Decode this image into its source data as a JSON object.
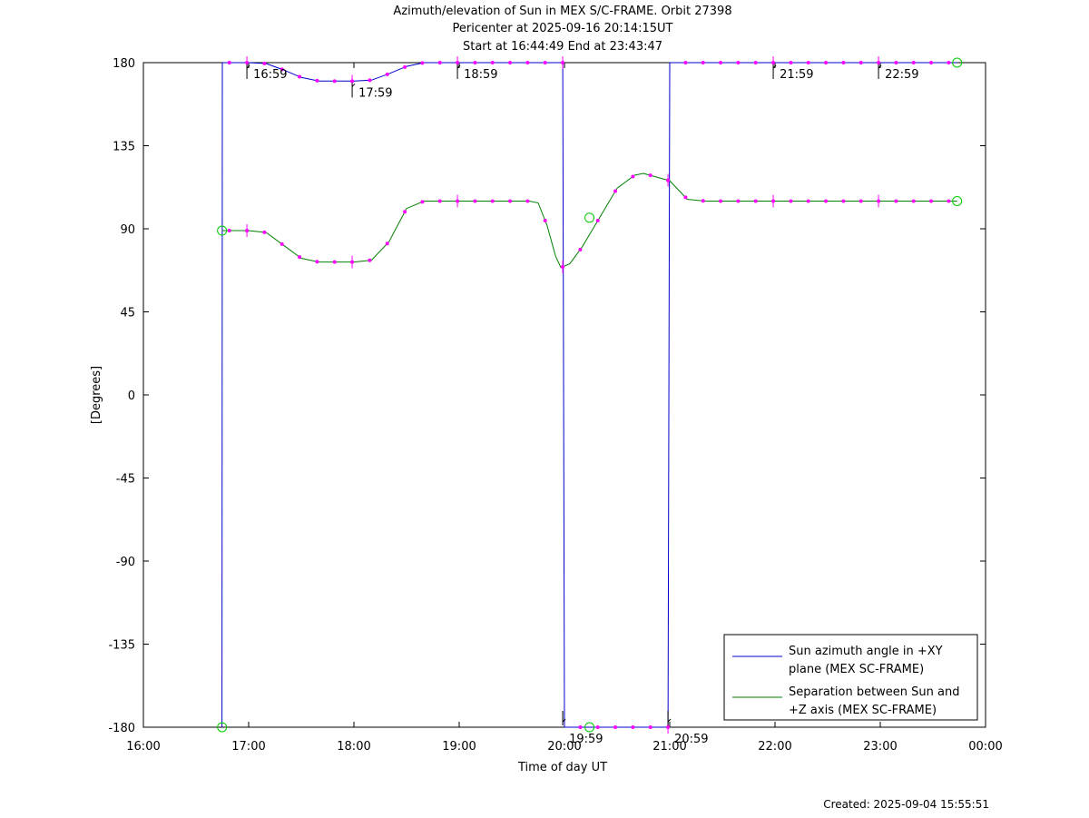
{
  "chart_data": {
    "type": "line",
    "title": "Azimuth/elevation of Sun in MEX S/C-FRAME.  Orbit 27398",
    "subtitle1": "Pericenter at 2025-09-16 20:14:15UT",
    "subtitle2": "Start at 16:44:49 End at 23:43:47",
    "xlabel": "Time of day UT",
    "ylabel": "[Degrees]",
    "created": "Created: 2025-09-04 15:55:51",
    "xlim": [
      "16:00",
      "00:00"
    ],
    "ylim": [
      -180,
      180
    ],
    "x_ticks": [
      "16:00",
      "17:00",
      "18:00",
      "19:00",
      "20:00",
      "21:00",
      "22:00",
      "23:00",
      "00:00"
    ],
    "y_ticks": [
      180,
      135,
      90,
      45,
      0,
      -45,
      -90,
      -135,
      -180
    ],
    "grid": false,
    "legend_position": "bottom-right",
    "series": [
      {
        "name": "Sun azimuth angle in +XY plane (MEX SC-FRAME)",
        "name_lines": [
          "Sun azimuth angle in +XY",
          "plane (MEX SC-FRAME)"
        ],
        "color": "#0000cc",
        "points": [
          [
            "16:44:49",
            -180
          ],
          [
            "16:45",
            180
          ],
          [
            "17:00",
            180
          ],
          [
            "17:10",
            179.5
          ],
          [
            "17:20",
            176
          ],
          [
            "17:30",
            172
          ],
          [
            "17:40",
            170
          ],
          [
            "18:00",
            170
          ],
          [
            "18:10",
            170.5
          ],
          [
            "18:20",
            174
          ],
          [
            "18:30",
            178
          ],
          [
            "18:40",
            180
          ],
          [
            "19:50",
            180
          ],
          [
            "19:59",
            180
          ],
          [
            "20:00",
            -180
          ],
          [
            "20:30",
            -180
          ],
          [
            "20:59",
            -180
          ],
          [
            "21:00",
            180
          ],
          [
            "23:43:47",
            180
          ]
        ]
      },
      {
        "name": "Separation between Sun and +Z axis (MEX SC-FRAME)",
        "name_lines": [
          "Separation between Sun and",
          "+Z axis (MEX SC-FRAME)"
        ],
        "color": "#008000",
        "points": [
          [
            "16:44:49",
            89
          ],
          [
            "17:00",
            89
          ],
          [
            "17:10",
            88
          ],
          [
            "17:20",
            81
          ],
          [
            "17:30",
            74
          ],
          [
            "17:40",
            72
          ],
          [
            "18:00",
            72
          ],
          [
            "18:10",
            73
          ],
          [
            "18:20",
            83
          ],
          [
            "18:30",
            101
          ],
          [
            "18:40",
            105
          ],
          [
            "19:40",
            105
          ],
          [
            "19:45",
            104
          ],
          [
            "19:50",
            92
          ],
          [
            "19:55",
            75
          ],
          [
            "19:58",
            69
          ],
          [
            "20:03",
            71
          ],
          [
            "20:10",
            80
          ],
          [
            "20:20",
            96
          ],
          [
            "20:30",
            112
          ],
          [
            "20:40",
            119
          ],
          [
            "20:45",
            120
          ],
          [
            "21:00",
            116
          ],
          [
            "21:10",
            106
          ],
          [
            "21:20",
            105
          ],
          [
            "23:43:47",
            105
          ]
        ]
      }
    ],
    "time_labels": [
      {
        "text": "16:59",
        "time": "16:59",
        "value": 180
      },
      {
        "text": "17:59",
        "time": "17:59",
        "value": 170
      },
      {
        "text": "18:59",
        "time": "18:59",
        "value": 180
      },
      {
        "text": "19:59",
        "time": "19:59",
        "value": -180
      },
      {
        "text": "20:59",
        "time": "20:59",
        "value": -180
      },
      {
        "text": "21:59",
        "time": "21:59",
        "value": 180
      },
      {
        "text": "22:59",
        "time": "22:59",
        "value": 180
      }
    ],
    "start_end_markers": [
      {
        "time": "16:44:49",
        "value": 89
      },
      {
        "time": "16:44:49",
        "value": -180
      },
      {
        "time": "23:43:47",
        "value": 105
      },
      {
        "time": "23:43:47",
        "value": 180
      },
      {
        "time": "20:14:15",
        "value": 96
      },
      {
        "time": "20:14:15",
        "value": -180
      }
    ],
    "marker_color": "#ff00ff",
    "circle_color": "#00cc00"
  }
}
